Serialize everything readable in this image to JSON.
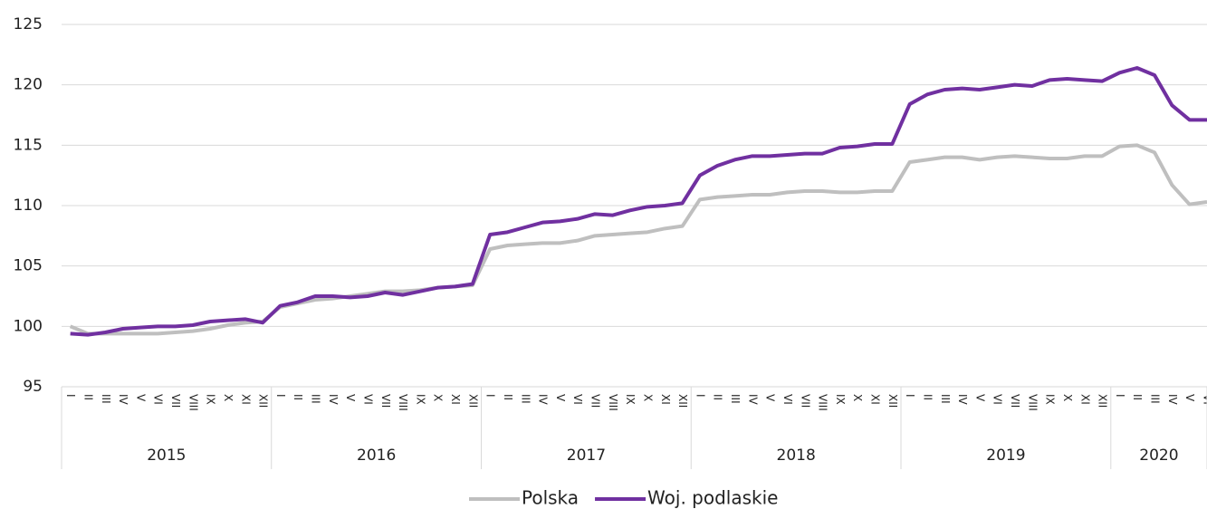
{
  "chart_data": {
    "type": "line",
    "categories": [
      "I",
      "II",
      "III",
      "IV",
      "V",
      "VI",
      "VII",
      "VIII",
      "IX",
      "X",
      "XI",
      "XII",
      "I",
      "II",
      "III",
      "IV",
      "V",
      "VI",
      "VII",
      "VIII",
      "IX",
      "X",
      "XI",
      "XII",
      "I",
      "II",
      "III",
      "IV",
      "V",
      "VI",
      "VII",
      "VIII",
      "IX",
      "X",
      "XI",
      "XII",
      "I",
      "II",
      "III",
      "IV",
      "V",
      "VI",
      "VII",
      "VIII",
      "IX",
      "X",
      "XI",
      "XII",
      "I",
      "II",
      "III",
      "IV",
      "V",
      "VI",
      "VII",
      "VIII",
      "IX",
      "X",
      "XI",
      "XII",
      "I",
      "II",
      "III",
      "IV",
      "V",
      "VI"
    ],
    "year_groups": [
      {
        "label": "2015",
        "months": 12
      },
      {
        "label": "2016",
        "months": 12
      },
      {
        "label": "2017",
        "months": 12
      },
      {
        "label": "2018",
        "months": 12
      },
      {
        "label": "2019",
        "months": 12
      },
      {
        "label": "2020",
        "months": 6
      }
    ],
    "series": [
      {
        "name": "Polska",
        "color": "#bfbfbf",
        "values": [
          100.0,
          99.4,
          99.4,
          99.4,
          99.4,
          99.4,
          99.5,
          99.6,
          99.8,
          100.1,
          100.3,
          100.4,
          101.6,
          101.9,
          102.2,
          102.3,
          102.5,
          102.7,
          102.9,
          102.9,
          103.0,
          103.2,
          103.3,
          103.4,
          106.4,
          106.7,
          106.8,
          106.9,
          106.9,
          107.1,
          107.5,
          107.6,
          107.7,
          107.8,
          108.1,
          108.3,
          110.5,
          110.7,
          110.8,
          110.9,
          110.9,
          111.1,
          111.2,
          111.2,
          111.1,
          111.1,
          111.2,
          111.2,
          113.6,
          113.8,
          114.0,
          114.0,
          113.8,
          114.0,
          114.1,
          114.0,
          113.9,
          113.9,
          114.1,
          114.1,
          114.9,
          115.0,
          114.4,
          111.7,
          110.1,
          110.3
        ]
      },
      {
        "name": "Woj. podlaskie",
        "color": "#7030a0",
        "values": [
          99.4,
          99.3,
          99.5,
          99.8,
          99.9,
          100.0,
          100.0,
          100.1,
          100.4,
          100.5,
          100.6,
          100.3,
          101.7,
          102.0,
          102.5,
          102.5,
          102.4,
          102.5,
          102.8,
          102.6,
          102.9,
          103.2,
          103.3,
          103.5,
          107.6,
          107.8,
          108.2,
          108.6,
          108.7,
          108.9,
          109.3,
          109.2,
          109.6,
          109.9,
          110.0,
          110.2,
          112.5,
          113.3,
          113.8,
          114.1,
          114.1,
          114.2,
          114.3,
          114.3,
          114.8,
          114.9,
          115.1,
          115.1,
          118.4,
          119.2,
          119.6,
          119.7,
          119.6,
          119.8,
          120.0,
          119.9,
          120.4,
          120.5,
          120.4,
          120.3,
          121.0,
          121.4,
          120.8,
          118.3,
          117.1,
          117.1
        ]
      }
    ],
    "ylim": [
      95,
      125
    ],
    "yticks": [
      95,
      100,
      105,
      110,
      115,
      120,
      125
    ],
    "grid": true,
    "legend": "bottom"
  }
}
